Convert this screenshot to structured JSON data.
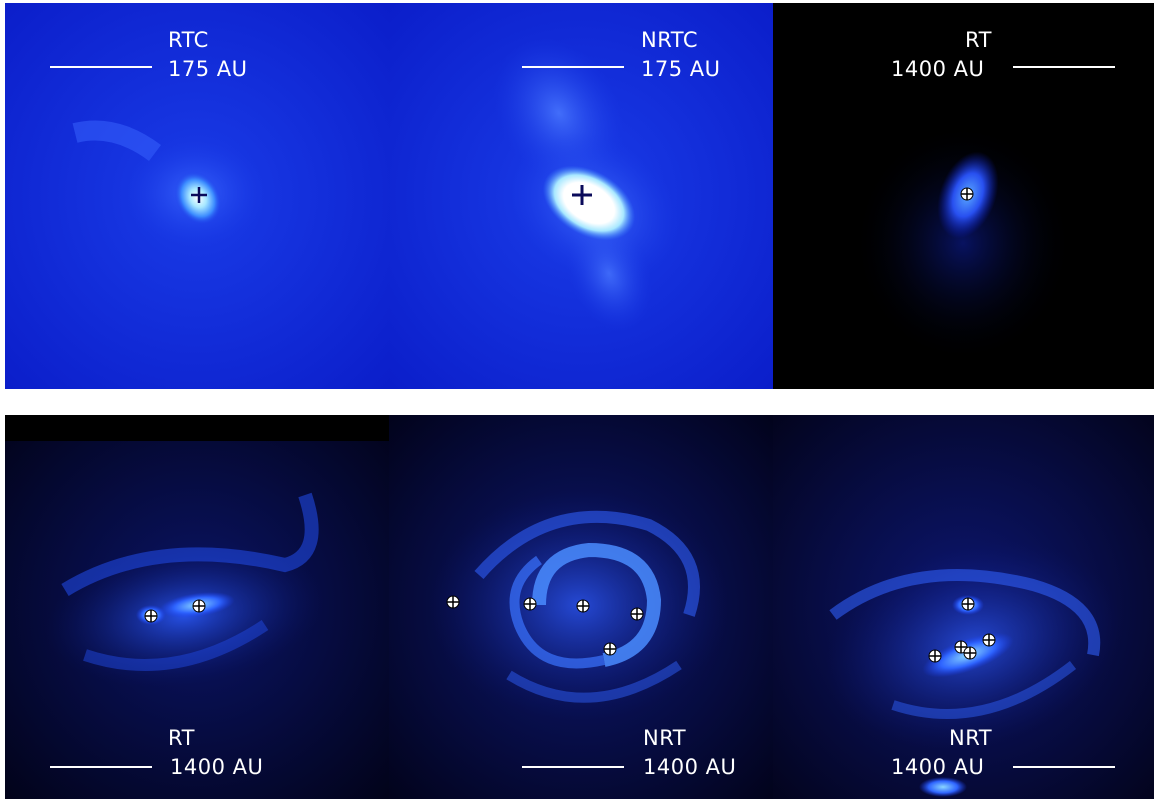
{
  "panels": [
    {
      "label": "RTC",
      "scale": "175 AU"
    },
    {
      "label": "NRTC",
      "scale": "175 AU"
    },
    {
      "label": "RT",
      "scale": "1400 AU"
    },
    {
      "label": "RT",
      "scale": "1400 AU"
    },
    {
      "label": "NRT",
      "scale": "1400 AU"
    },
    {
      "label": "NRT",
      "scale": "1400 AU"
    }
  ],
  "colors": {
    "deep_blue": "#0a1fd0",
    "black": "#000000",
    "bright_cyan": "#7ec8ff",
    "white": "#ffffff",
    "marker_dark": "#0a0a5a"
  }
}
